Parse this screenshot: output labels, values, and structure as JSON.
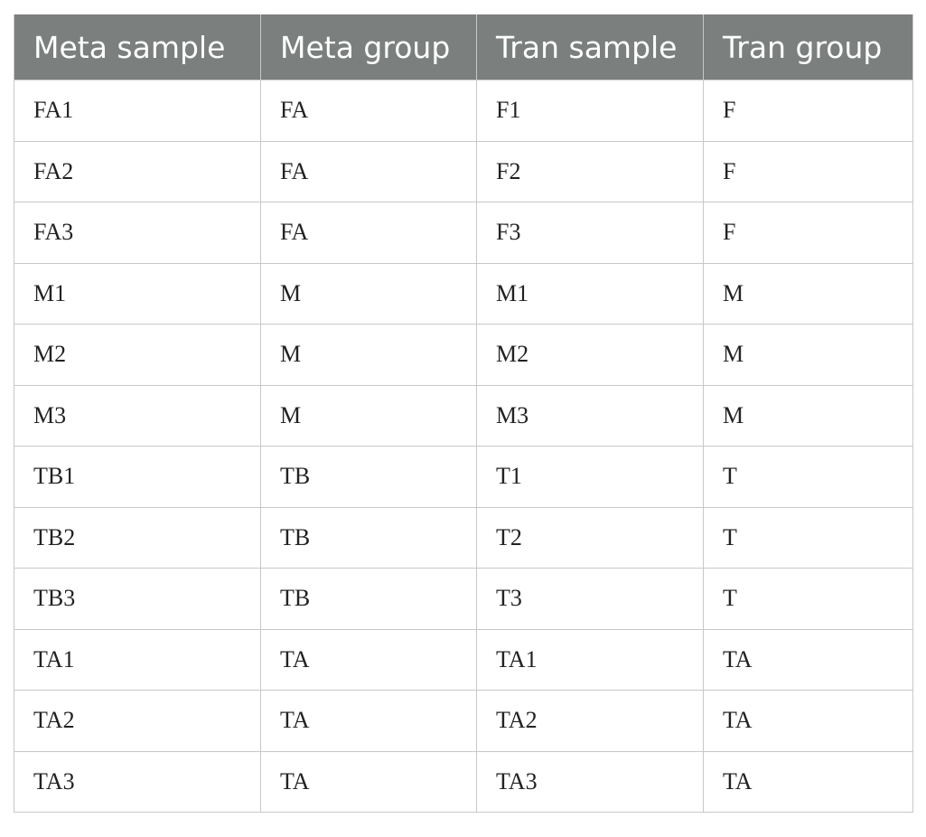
{
  "table": {
    "header": [
      "Meta sample",
      "Meta group",
      "Tran sample",
      "Tran group"
    ],
    "rows": [
      [
        "FA1",
        "FA",
        "F1",
        "F"
      ],
      [
        "FA2",
        "FA",
        "F2",
        "F"
      ],
      [
        "FA3",
        "FA",
        "F3",
        "F"
      ],
      [
        "M1",
        "M",
        "M1",
        "M"
      ],
      [
        "M2",
        "M",
        "M2",
        "M"
      ],
      [
        "M3",
        "M",
        "M3",
        "M"
      ],
      [
        "TB1",
        "TB",
        "T1",
        "T"
      ],
      [
        "TB2",
        "TB",
        "T2",
        "T"
      ],
      [
        "TB3",
        "TB",
        "T3",
        "T"
      ],
      [
        "TA1",
        "TA",
        "TA1",
        "TA"
      ],
      [
        "TA2",
        "TA",
        "TA2",
        "TA"
      ],
      [
        "TA3",
        "TA",
        "TA3",
        "TA"
      ]
    ]
  }
}
